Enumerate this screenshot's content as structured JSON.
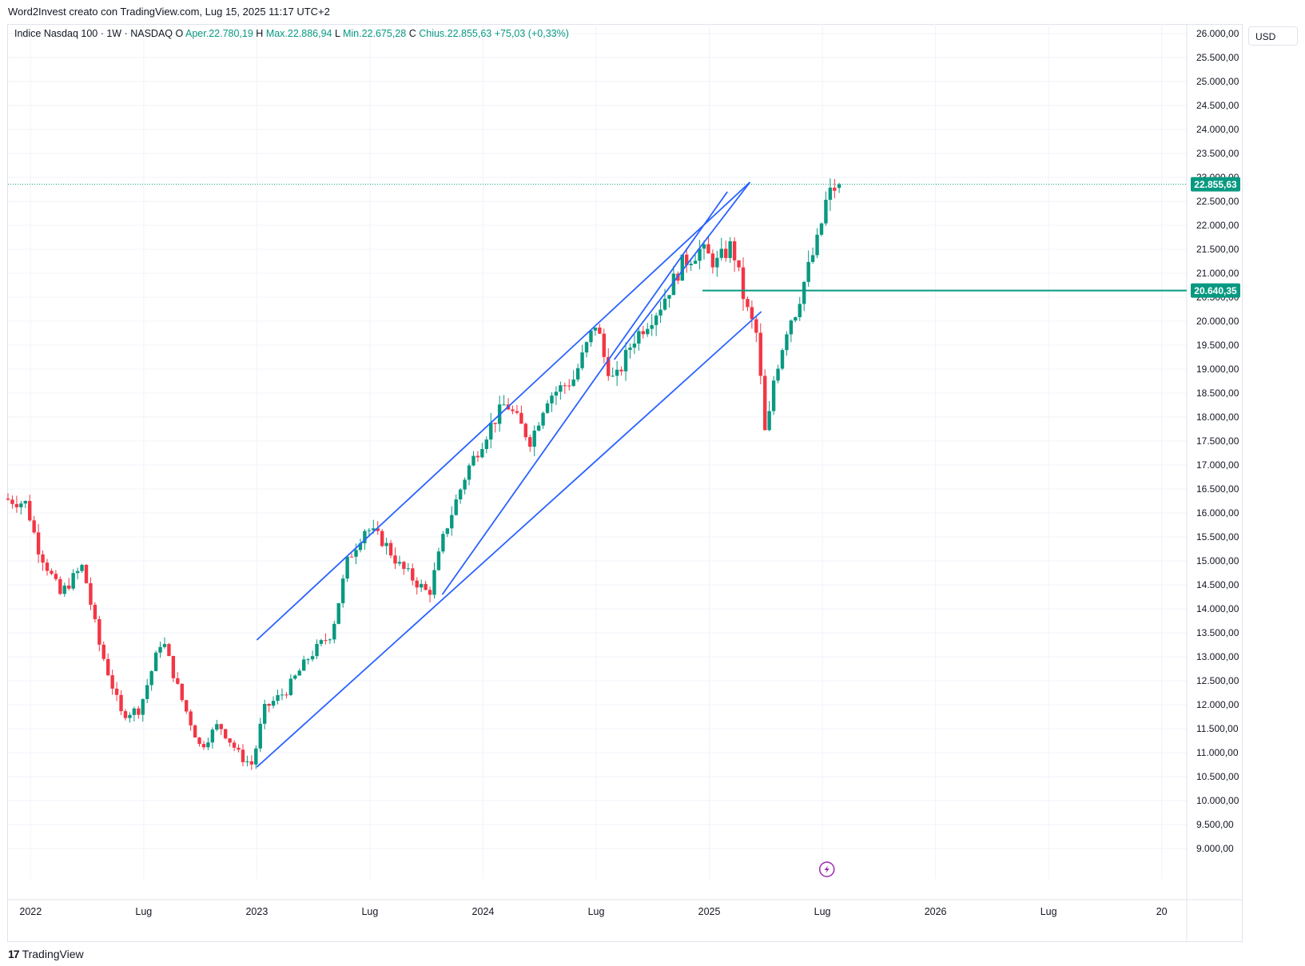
{
  "header": {
    "credit": "Word2Invest creato con TradingView.com, Lug 15, 2025 11:17 UTC+2"
  },
  "legend": {
    "symbol": "Indice Nasdaq 100 · 1W · NASDAQ",
    "open_label": "O",
    "open": "Aper.22.780,19",
    "high_label": "H",
    "high": "Max.22.886,94",
    "low_label": "L",
    "low": "Min.22.675,28",
    "close_label": "C",
    "close": "Chius.22.855,63",
    "change": "+75,03 (+0,33%)"
  },
  "currency": "USD",
  "footer": {
    "brand": "TradingView",
    "mark": "17"
  },
  "colors": {
    "up": "#089981",
    "down": "#f23645",
    "trend": "#2962ff",
    "level": "#089981",
    "grid": "#f0f3fa",
    "event_icon": "#9c27b0"
  },
  "chart_data": {
    "type": "candlestick",
    "title": "Indice Nasdaq 100 · 1W · NASDAQ",
    "ylim": [
      8500,
      26200
    ],
    "y_ticks": [
      9000,
      9500,
      10000,
      10500,
      11000,
      11500,
      12000,
      12500,
      13000,
      13500,
      14000,
      14500,
      15000,
      15500,
      16000,
      16500,
      17000,
      17500,
      18000,
      18500,
      19000,
      19500,
      20000,
      20500,
      21000,
      21500,
      22000,
      22500,
      23000,
      23500,
      24000,
      24500,
      25000,
      25500,
      26000
    ],
    "y_tick_labels": [
      "9.000,00",
      "9.500,00",
      "10.000,00",
      "10.500,00",
      "11.000,00",
      "11.500,00",
      "12.000,00",
      "12.500,00",
      "13.000,00",
      "13.500,00",
      "14.000,00",
      "14.500,00",
      "15.000,00",
      "15.500,00",
      "16.000,00",
      "16.500,00",
      "17.000,00",
      "17.500,00",
      "18.000,00",
      "18.500,00",
      "19.000,00",
      "19.500,00",
      "20.000,00",
      "20.500,00",
      "21.000,00",
      "21.500,00",
      "22.000,00",
      "22.500,00",
      "23.000,00",
      "23.500,00",
      "24.000,00",
      "24.500,00",
      "25.000,00",
      "25.500,00",
      "26.000,00"
    ],
    "x_range": [
      2021.9,
      2027.1
    ],
    "x_ticks": [
      {
        "t": 2022.0,
        "label": "2022"
      },
      {
        "t": 2022.5,
        "label": "Lug"
      },
      {
        "t": 2023.0,
        "label": "2023"
      },
      {
        "t": 2023.5,
        "label": "Lug"
      },
      {
        "t": 2024.0,
        "label": "2024"
      },
      {
        "t": 2024.5,
        "label": "Lug"
      },
      {
        "t": 2025.0,
        "label": "2025"
      },
      {
        "t": 2025.5,
        "label": "Lug"
      },
      {
        "t": 2026.0,
        "label": "2026"
      },
      {
        "t": 2026.5,
        "label": "Lug"
      },
      {
        "t": 2027.0,
        "label": "20"
      }
    ],
    "anchors": [
      [
        2021.9,
        16300
      ],
      [
        2022.0,
        16200
      ],
      [
        2022.05,
        15300
      ],
      [
        2022.15,
        14300
      ],
      [
        2022.25,
        14900
      ],
      [
        2022.32,
        13300
      ],
      [
        2022.42,
        11800
      ],
      [
        2022.5,
        11900
      ],
      [
        2022.6,
        13400
      ],
      [
        2022.68,
        12200
      ],
      [
        2022.77,
        11100
      ],
      [
        2022.85,
        11600
      ],
      [
        2022.95,
        10900
      ],
      [
        2023.0,
        10750
      ],
      [
        2023.05,
        11900
      ],
      [
        2023.15,
        12300
      ],
      [
        2023.25,
        13000
      ],
      [
        2023.35,
        13500
      ],
      [
        2023.42,
        15000
      ],
      [
        2023.5,
        15700
      ],
      [
        2023.58,
        15400
      ],
      [
        2023.65,
        14900
      ],
      [
        2023.78,
        14300
      ],
      [
        2023.85,
        15600
      ],
      [
        2023.95,
        16900
      ],
      [
        2024.05,
        17800
      ],
      [
        2024.12,
        18300
      ],
      [
        2024.23,
        17500
      ],
      [
        2024.3,
        18400
      ],
      [
        2024.42,
        18800
      ],
      [
        2024.52,
        20000
      ],
      [
        2024.55,
        19300
      ],
      [
        2024.6,
        18700
      ],
      [
        2024.68,
        19600
      ],
      [
        2024.8,
        20300
      ],
      [
        2024.9,
        21200
      ],
      [
        2024.98,
        21500
      ],
      [
        2025.05,
        21200
      ],
      [
        2025.12,
        21600
      ],
      [
        2025.18,
        20300
      ],
      [
        2025.23,
        19700
      ],
      [
        2025.27,
        17400
      ],
      [
        2025.3,
        18700
      ],
      [
        2025.37,
        20000
      ],
      [
        2025.4,
        20200
      ],
      [
        2025.45,
        21000
      ],
      [
        2025.5,
        21700
      ],
      [
        2025.54,
        22600
      ],
      [
        2025.56,
        22700
      ],
      [
        2025.57,
        22780
      ]
    ],
    "last_candle": {
      "open": 22780.19,
      "high": 22886.94,
      "low": 22675.28,
      "close": 22855.63
    },
    "annotations": {
      "last_price": 22855.63,
      "last_price_label": "22.855,63",
      "level": 20640.35,
      "level_label": "20.640,35",
      "level_start": 2024.97,
      "trend_lines": [
        {
          "name": "channel-upper",
          "from": [
            2023.0,
            13350
          ],
          "to": [
            2025.18,
            22900
          ]
        },
        {
          "name": "channel-lower",
          "from": [
            2023.0,
            10700
          ],
          "to": [
            2025.23,
            20200
          ]
        },
        {
          "name": "steep-upper-1",
          "from": [
            2023.82,
            14300
          ],
          "to": [
            2025.08,
            22700
          ]
        },
        {
          "name": "steep-upper-2",
          "from": [
            2024.58,
            19200
          ],
          "to": [
            2025.18,
            22900
          ]
        }
      ],
      "event_marker_t": 2025.52
    }
  }
}
